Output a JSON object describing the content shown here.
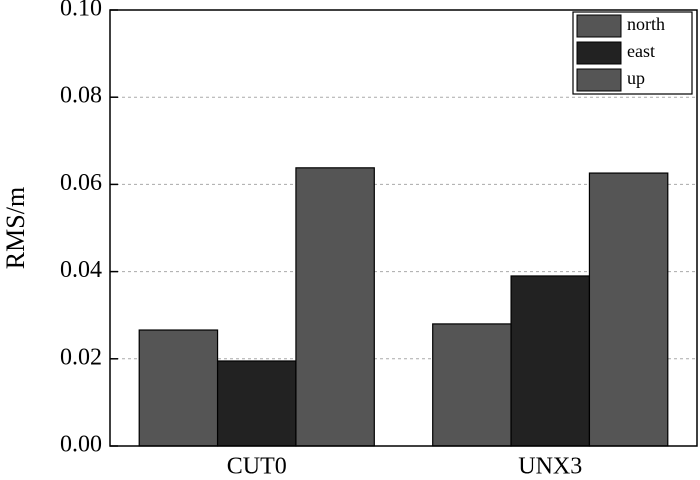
{
  "chart_data": {
    "type": "bar",
    "y_label": "RMS/m",
    "categories": [
      "CUT0",
      "UNX3"
    ],
    "series": [
      {
        "name": "north",
        "color": "#555555",
        "values": [
          0.0266,
          0.028
        ]
      },
      {
        "name": "east",
        "color": "#222222",
        "values": [
          0.0195,
          0.039
        ]
      },
      {
        "name": "up",
        "color": "#555555",
        "values": [
          0.0638,
          0.0626
        ]
      }
    ],
    "ylim": [
      0,
      0.1
    ],
    "yticks": [
      {
        "value": 0,
        "label": "0.00"
      },
      0.02,
      0.04,
      0.06,
      0.08,
      {
        "value": 0.1,
        "label": "0.10"
      }
    ],
    "grid": true,
    "legend": "upper-right"
  }
}
